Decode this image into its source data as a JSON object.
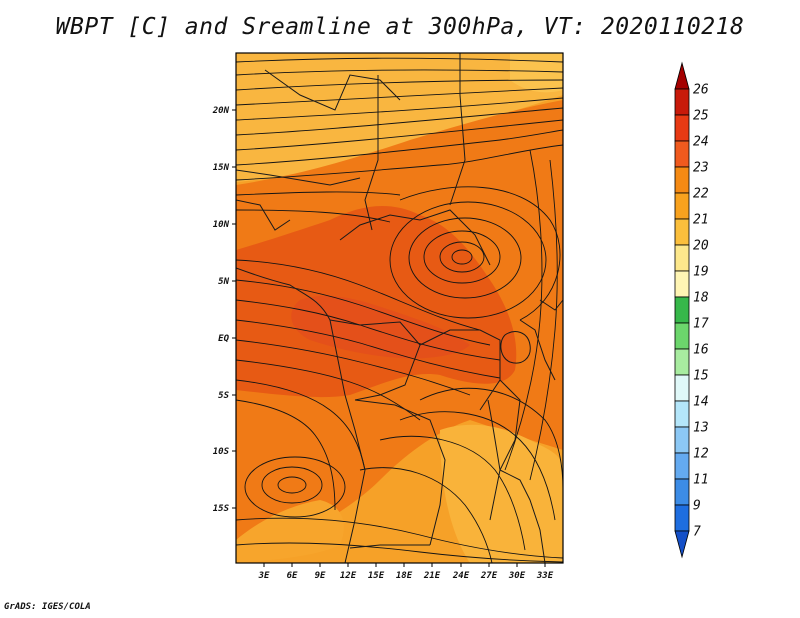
{
  "title": "WBPT [C] and Sreamline at 300hPa, VT: 2020110218",
  "credit": "GrADS: IGES/COLA",
  "map": {
    "lat_ticks": [
      "20N",
      "15N",
      "10N",
      "5N",
      "EQ",
      "5S",
      "10S",
      "15S"
    ],
    "lon_ticks": [
      "3E",
      "6E",
      "9E",
      "12E",
      "15E",
      "18E",
      "21E",
      "24E",
      "27E",
      "30E",
      "33E"
    ],
    "layers": [
      "wet-bulb potential temperature shading",
      "300hPa streamlines",
      "country boundaries"
    ]
  },
  "colorbar": {
    "levels": [
      "26",
      "25",
      "24",
      "23",
      "22",
      "21",
      "20",
      "19",
      "18",
      "17",
      "16",
      "15",
      "14",
      "13",
      "12",
      "11",
      "9",
      "7"
    ],
    "colors": [
      "#a50000",
      "#c81a0a",
      "#e83a14",
      "#f05a1e",
      "#f58a14",
      "#f8a21e",
      "#fbbf3c",
      "#fde88c",
      "#fff5b4",
      "#37b84a",
      "#6cd66c",
      "#a8eca0",
      "#e0f8f8",
      "#b4e6fa",
      "#8cc8f5",
      "#64aaf0",
      "#3c8ce6",
      "#1e6ee0",
      "#1450c8"
    ]
  }
}
